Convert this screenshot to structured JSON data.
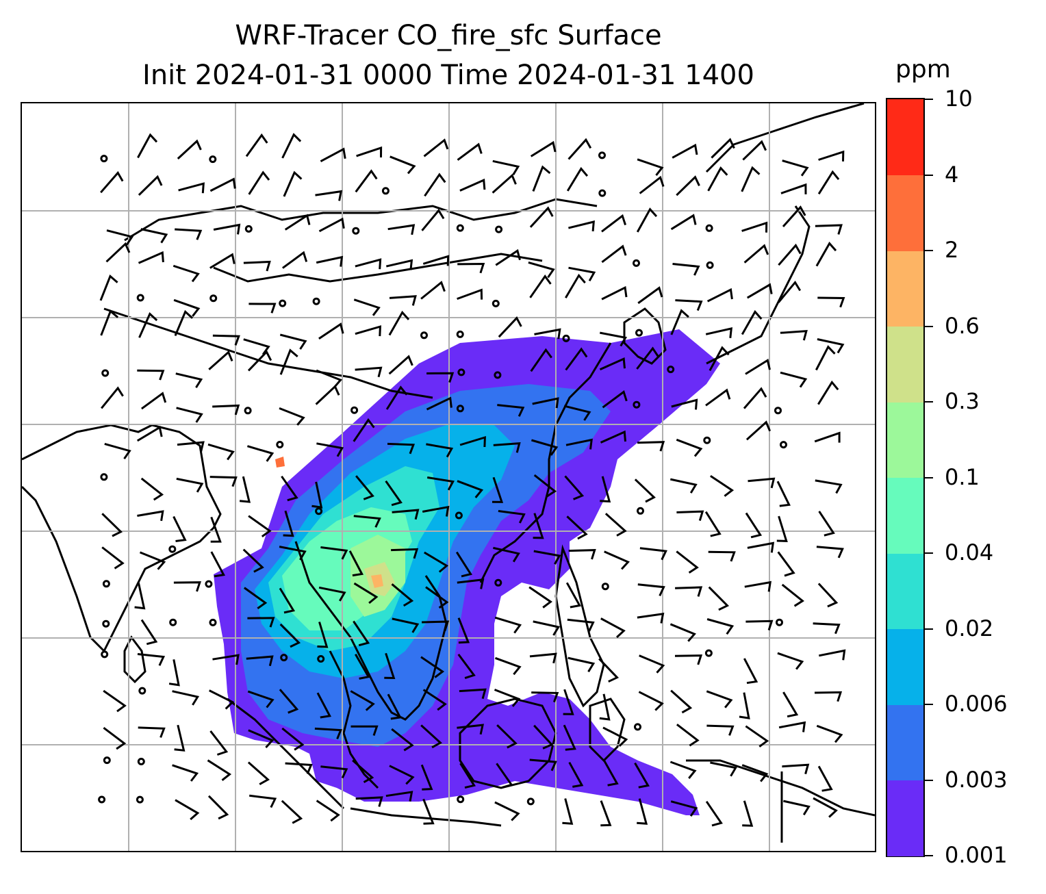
{
  "title": {
    "line1": "WRF-Tracer CO_fire_sfc Surface",
    "line2": "Init 2024-01-31 0000 Time 2024-01-31 1400"
  },
  "colorbar": {
    "units": "ppm",
    "labels": [
      "0.001",
      "0.003",
      "0.006",
      "0.02",
      "0.04",
      "0.1",
      "0.3",
      "0.6",
      "2",
      "4",
      "10"
    ],
    "colors": [
      "#6a2cf7",
      "#3373f0",
      "#06b1ea",
      "#2fe0d2",
      "#66fbbc",
      "#9cf89a",
      "#cfe18a",
      "#fdb464",
      "#fe6f3a",
      "#ff2a17"
    ]
  },
  "map": {
    "gridline_color": "#b0b0b0",
    "coastline_color": "#000000",
    "gridlines": true
  }
}
